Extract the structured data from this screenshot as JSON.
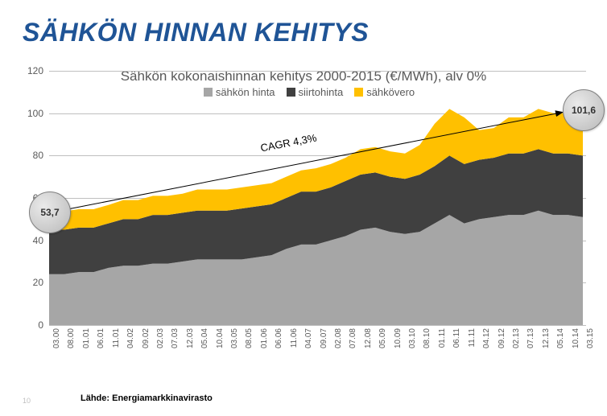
{
  "title": "SÄHKÖN HINNAN KEHITYS",
  "subtitle": "Sähkön kokonaishinnan kehitys 2000-2015 (€/MWh), alv 0%",
  "legend": [
    {
      "label": "sähkön hinta",
      "color": "#a6a6a6"
    },
    {
      "label": "siirtohinta",
      "color": "#404040"
    },
    {
      "label": "sähkövero",
      "color": "#ffc000"
    }
  ],
  "chart": {
    "type": "stacked-area",
    "ylim": [
      0,
      120
    ],
    "ytick_step": 20,
    "ytick_fontsize": 12,
    "grid_color": "#bfbfbf",
    "background": "#ffffff",
    "categories": [
      "03.00",
      "08.00",
      "01.01",
      "06.01",
      "11.01",
      "04.02",
      "09.02",
      "02.03",
      "07.03",
      "12.03",
      "05.04",
      "10.04",
      "03.05",
      "08.05",
      "01.06",
      "06.06",
      "11.06",
      "04.07",
      "09.07",
      "02.08",
      "07.08",
      "12.08",
      "05.09",
      "10.09",
      "03.10",
      "08.10",
      "01.11",
      "06.11",
      "11.11",
      "04.12",
      "09.12",
      "02.13",
      "07.13",
      "12.13",
      "05.14",
      "10.14",
      "03.15"
    ],
    "stack": [
      {
        "key": "sähkön hinta",
        "color": "#a6a6a6",
        "values": [
          24,
          24,
          25,
          25,
          27,
          28,
          28,
          29,
          29,
          30,
          31,
          31,
          31,
          31,
          32,
          33,
          36,
          38,
          38,
          40,
          42,
          45,
          46,
          44,
          43,
          44,
          48,
          52,
          48,
          50,
          51,
          52,
          52,
          54,
          52,
          52,
          51
        ]
      },
      {
        "key": "siirtohinta",
        "color": "#404040",
        "values": [
          21,
          21,
          21,
          21,
          21,
          22,
          22,
          23,
          23,
          23,
          23,
          23,
          23,
          24,
          24,
          24,
          24,
          25,
          25,
          25,
          26,
          26,
          26,
          26,
          26,
          27,
          27,
          28,
          28,
          28,
          28,
          29,
          29,
          29,
          29,
          29,
          29
        ]
      },
      {
        "key": "sähkövero",
        "color": "#ffc000",
        "values": [
          8.7,
          8.7,
          8.7,
          8.7,
          8.7,
          9,
          9,
          9,
          9,
          9,
          10,
          10,
          10,
          10,
          10,
          10,
          10,
          10,
          11,
          11,
          11,
          12,
          12,
          12,
          12,
          14,
          20,
          22,
          22,
          14,
          14,
          17,
          17,
          19,
          19,
          19,
          21.6
        ]
      }
    ],
    "callout_start": "53,7",
    "callout_end": "101,6",
    "cagr_label": "CAGR 4,3%",
    "xlabel_fontsize": 10
  },
  "source": "Lähde: Energiamarkkinavirasto",
  "page": "10"
}
